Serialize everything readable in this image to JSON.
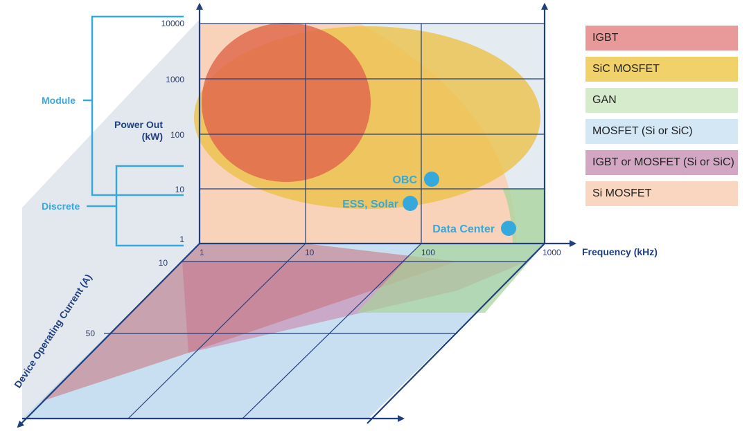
{
  "y_axis": {
    "title_line1": "Power Out",
    "title_line2": "(kW)",
    "ticks": [
      "10000",
      "1000",
      "100",
      "10",
      "1"
    ]
  },
  "x_axis": {
    "title": "Frequency (kHz)",
    "ticks": [
      "1",
      "10",
      "100",
      "1000"
    ]
  },
  "depth_axis": {
    "title": "Device Operating Current (A)",
    "ticks": [
      "10",
      "50"
    ]
  },
  "brackets": {
    "module": "Module",
    "discrete": "Discrete"
  },
  "applications": {
    "obc": "OBC",
    "ess_solar": "ESS, Solar",
    "data_center": "Data Center"
  },
  "legend": [
    {
      "label": "IGBT",
      "color": "#e89a9a"
    },
    {
      "label": "SiC MOSFET",
      "color": "#f0d16a"
    },
    {
      "label": "GAN",
      "color": "#d5ebcc"
    },
    {
      "label": "MOSFET (Si or SiC)",
      "color": "#d3e7f5"
    },
    {
      "label": "IGBT or MOSFET (Si or SiC)",
      "color": "#d3a6c4"
    },
    {
      "label": "Si MOSFET",
      "color": "#f9d6bf"
    }
  ],
  "colors": {
    "axis": "#1f3f7f",
    "accent": "#36a9dc",
    "igbt_region": "#e06a4e",
    "sic_region": "#ecc24a",
    "si_mosfet_region": "#f9d0b4",
    "gan_region": "#a8d39a",
    "mosfet_floor": "#c7dff0",
    "igbt_or_mosfet_floor": "#c9a0c0",
    "igbt_floor": "#c9707a"
  }
}
